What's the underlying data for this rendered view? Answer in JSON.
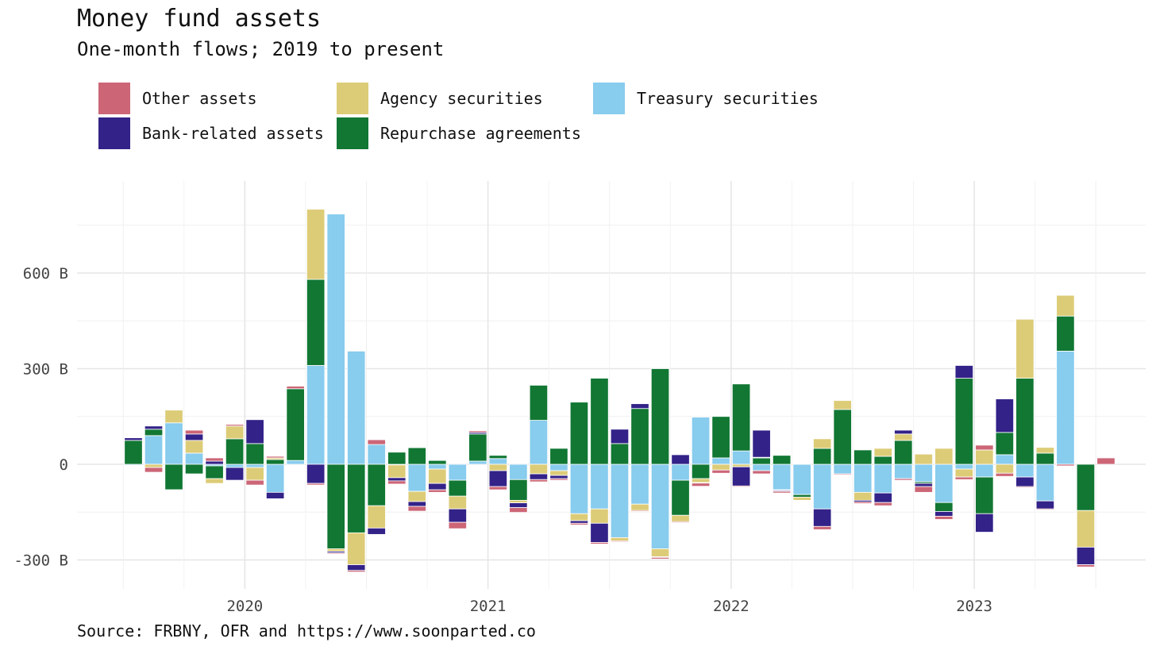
{
  "chart_data": {
    "type": "bar",
    "stacked": true,
    "title": "Money fund assets",
    "subtitle": "One-month flows; 2019 to present",
    "source": "Source: FRBNY, OFR and https://www.soonparted.co",
    "ylim": [
      -340,
      840
    ],
    "yticks": [
      -300,
      0,
      300,
      600
    ],
    "ytick_labels": [
      "-300 B",
      "0",
      "300 B",
      "600 B"
    ],
    "xticks": [
      {
        "index": 5.5,
        "label": "2020"
      },
      {
        "index": 17.5,
        "label": "2021"
      },
      {
        "index": 29.5,
        "label": "2022"
      },
      {
        "index": 41.5,
        "label": "2023"
      }
    ],
    "grid": true,
    "legend_position": "top-left",
    "months": [
      "2019-07",
      "2019-08",
      "2019-09",
      "2019-10",
      "2019-11",
      "2019-12",
      "2020-01",
      "2020-02",
      "2020-03",
      "2020-04",
      "2020-05",
      "2020-06",
      "2020-07",
      "2020-08",
      "2020-09",
      "2020-10",
      "2020-11",
      "2020-12",
      "2021-01",
      "2021-02",
      "2021-03",
      "2021-04",
      "2021-05",
      "2021-06",
      "2021-07",
      "2021-08",
      "2021-09",
      "2021-10",
      "2021-11",
      "2021-12",
      "2022-01",
      "2022-02",
      "2022-03",
      "2022-04",
      "2022-05",
      "2022-06",
      "2022-07",
      "2022-08",
      "2022-09",
      "2022-10",
      "2022-11",
      "2022-12",
      "2023-01",
      "2023-02",
      "2023-03",
      "2023-04",
      "2023-05",
      "2023-06",
      "2023-07"
    ],
    "series": [
      {
        "name": "Treasury securities",
        "color": "#88CCEE",
        "values": [
          -3,
          90,
          130,
          35,
          -5,
          -10,
          -10,
          -88,
          12,
          310,
          785,
          355,
          62,
          -2,
          -85,
          -15,
          -50,
          10,
          18,
          -48,
          138,
          -20,
          -155,
          -140,
          -230,
          -125,
          -265,
          -50,
          148,
          20,
          42,
          -20,
          -80,
          -95,
          -140,
          -30,
          -88,
          -90,
          -45,
          -55,
          -120,
          -15,
          -40,
          30,
          -40,
          -115,
          355,
          0,
          0
        ]
      },
      {
        "name": "Repurchase agreements",
        "color": "#117733",
        "values": [
          75,
          20,
          -80,
          -30,
          -40,
          80,
          65,
          15,
          225,
          270,
          -265,
          -215,
          -130,
          38,
          52,
          12,
          -50,
          85,
          10,
          -65,
          110,
          50,
          195,
          270,
          65,
          175,
          300,
          -110,
          -45,
          130,
          210,
          20,
          28,
          -8,
          50,
          172,
          45,
          25,
          75,
          -5,
          -28,
          270,
          -115,
          70,
          270,
          35,
          110,
          -145,
          0
        ]
      },
      {
        "name": "Agency securities",
        "color": "#DDCC77",
        "values": [
          0,
          -10,
          40,
          40,
          -15,
          40,
          -40,
          5,
          0,
          220,
          -8,
          -100,
          -70,
          -40,
          -32,
          -45,
          -40,
          0,
          -20,
          -8,
          -30,
          -15,
          -22,
          -45,
          -10,
          -20,
          -25,
          -20,
          -12,
          -18,
          -8,
          2,
          -2,
          -10,
          30,
          28,
          -25,
          25,
          20,
          32,
          50,
          -25,
          45,
          -28,
          185,
          18,
          65,
          -115,
          0
        ]
      },
      {
        "name": "Bank-related assets",
        "color": "#332288",
        "values": [
          8,
          10,
          -2,
          20,
          10,
          -40,
          75,
          -20,
          0,
          -60,
          -5,
          -18,
          -20,
          -10,
          -15,
          -20,
          -42,
          5,
          -50,
          -15,
          -18,
          -10,
          -8,
          -60,
          45,
          15,
          -2,
          30,
          -2,
          0,
          -60,
          85,
          -3,
          2,
          -55,
          0,
          -5,
          -30,
          12,
          -10,
          -15,
          40,
          -58,
          105,
          -30,
          -25,
          0,
          -55,
          0
        ]
      },
      {
        "name": "Other assets",
        "color": "#CC6677",
        "values": [
          0,
          -15,
          0,
          12,
          10,
          5,
          -15,
          5,
          8,
          -5,
          -3,
          -5,
          15,
          -10,
          -15,
          -8,
          -20,
          5,
          -10,
          -15,
          -7,
          -5,
          -5,
          -5,
          -3,
          -3,
          -5,
          -3,
          -10,
          -10,
          -3,
          -10,
          -5,
          -2,
          -10,
          -3,
          -5,
          -10,
          -5,
          -18,
          -10,
          -8,
          15,
          -10,
          -3,
          -3,
          -5,
          -7,
          20
        ]
      }
    ]
  }
}
